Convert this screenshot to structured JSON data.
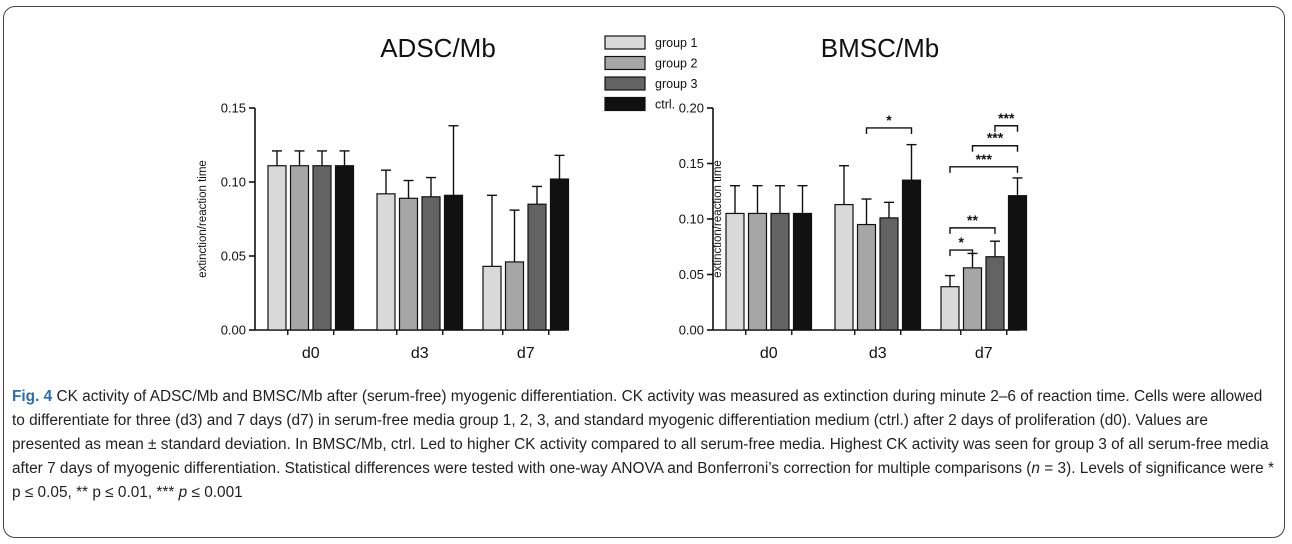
{
  "chart_data": [
    {
      "type": "bar",
      "title": "ADSC/Mb",
      "ylabel": "extinction/reaction time",
      "xlabel": "",
      "categories": [
        "d0",
        "d3",
        "d7"
      ],
      "ylim": [
        0,
        0.15
      ],
      "yticks": [
        "0.00",
        "0.05",
        "0.10",
        "0.15"
      ],
      "series": [
        {
          "name": "group 1",
          "color": "#d9d9d9",
          "values": [
            0.111,
            0.092,
            0.043
          ],
          "errors": [
            0.01,
            0.016,
            0.048
          ]
        },
        {
          "name": "group 2",
          "color": "#a6a6a6",
          "values": [
            0.111,
            0.089,
            0.046
          ],
          "errors": [
            0.01,
            0.012,
            0.035
          ]
        },
        {
          "name": "group 3",
          "color": "#636363",
          "values": [
            0.111,
            0.09,
            0.085
          ],
          "errors": [
            0.01,
            0.013,
            0.012
          ]
        },
        {
          "name": "ctrl.",
          "color": "#111111",
          "values": [
            0.111,
            0.091,
            0.102
          ],
          "errors": [
            0.01,
            0.047,
            0.016
          ]
        }
      ],
      "significance": []
    },
    {
      "type": "bar",
      "title": "BMSC/Mb",
      "ylabel": "extinction/reaction time",
      "xlabel": "",
      "categories": [
        "d0",
        "d3",
        "d7"
      ],
      "ylim": [
        0,
        0.2
      ],
      "yticks": [
        "0.00",
        "0.05",
        "0.10",
        "0.15",
        "0.20"
      ],
      "series": [
        {
          "name": "group 1",
          "color": "#d9d9d9",
          "values": [
            0.105,
            0.113,
            0.039
          ],
          "errors": [
            0.025,
            0.035,
            0.01
          ]
        },
        {
          "name": "group 2",
          "color": "#a6a6a6",
          "values": [
            0.105,
            0.095,
            0.056
          ],
          "errors": [
            0.025,
            0.023,
            0.013
          ]
        },
        {
          "name": "group 3",
          "color": "#636363",
          "values": [
            0.105,
            0.101,
            0.066
          ],
          "errors": [
            0.025,
            0.014,
            0.014
          ]
        },
        {
          "name": "ctrl.",
          "color": "#111111",
          "values": [
            0.105,
            0.135,
            0.121
          ],
          "errors": [
            0.025,
            0.032,
            0.016
          ]
        }
      ],
      "significance": [
        {
          "category": "d3",
          "from": 1,
          "to": 3,
          "level": 0.182,
          "label": "*"
        },
        {
          "category": "d7",
          "from": 0,
          "to": 1,
          "level": 0.072,
          "label": "*"
        },
        {
          "category": "d7",
          "from": 0,
          "to": 2,
          "level": 0.092,
          "label": "**"
        },
        {
          "category": "d7",
          "from": 0,
          "to": 3,
          "level": 0.147,
          "label": "***"
        },
        {
          "category": "d7",
          "from": 1,
          "to": 3,
          "level": 0.166,
          "label": "***"
        },
        {
          "category": "d7",
          "from": 2,
          "to": 3,
          "level": 0.184,
          "label": "***"
        }
      ]
    }
  ],
  "legend": {
    "placement": "top-center",
    "entries": [
      "group 1",
      "group 2",
      "group 3",
      "ctrl."
    ]
  },
  "caption": {
    "label": "Fig. 4",
    "part1": " CK activity of ADSC/Mb and BMSC/Mb after (serum-free) myogenic differentiation. CK activity was measured as extinction during minute 2–6 of reaction time. Cells were allowed to differentiate for three (d3) and 7 days (d7) in serum-free media group 1, 2, 3, and standard myogenic differentiation medium (ctrl.) after 2 days of proliferation (d0). Values are presented as mean ± standard deviation. In BMSC/Mb, ctrl. Led to higher CK activity compared to all serum-free media. Highest CK activity was seen for group 3 of all serum-free media after 7 days of myogenic differentiation. Statistical differences were tested with one-way ANOVA and Bonferroni’s correction for multiple comparisons (",
    "n_italic": "n",
    "part2": " = 3). Levels of significance were * p ≤ 0.05, ** p ≤ 0.01, *** ",
    "p_italic": "p",
    "part3": " ≤ 0.001"
  }
}
